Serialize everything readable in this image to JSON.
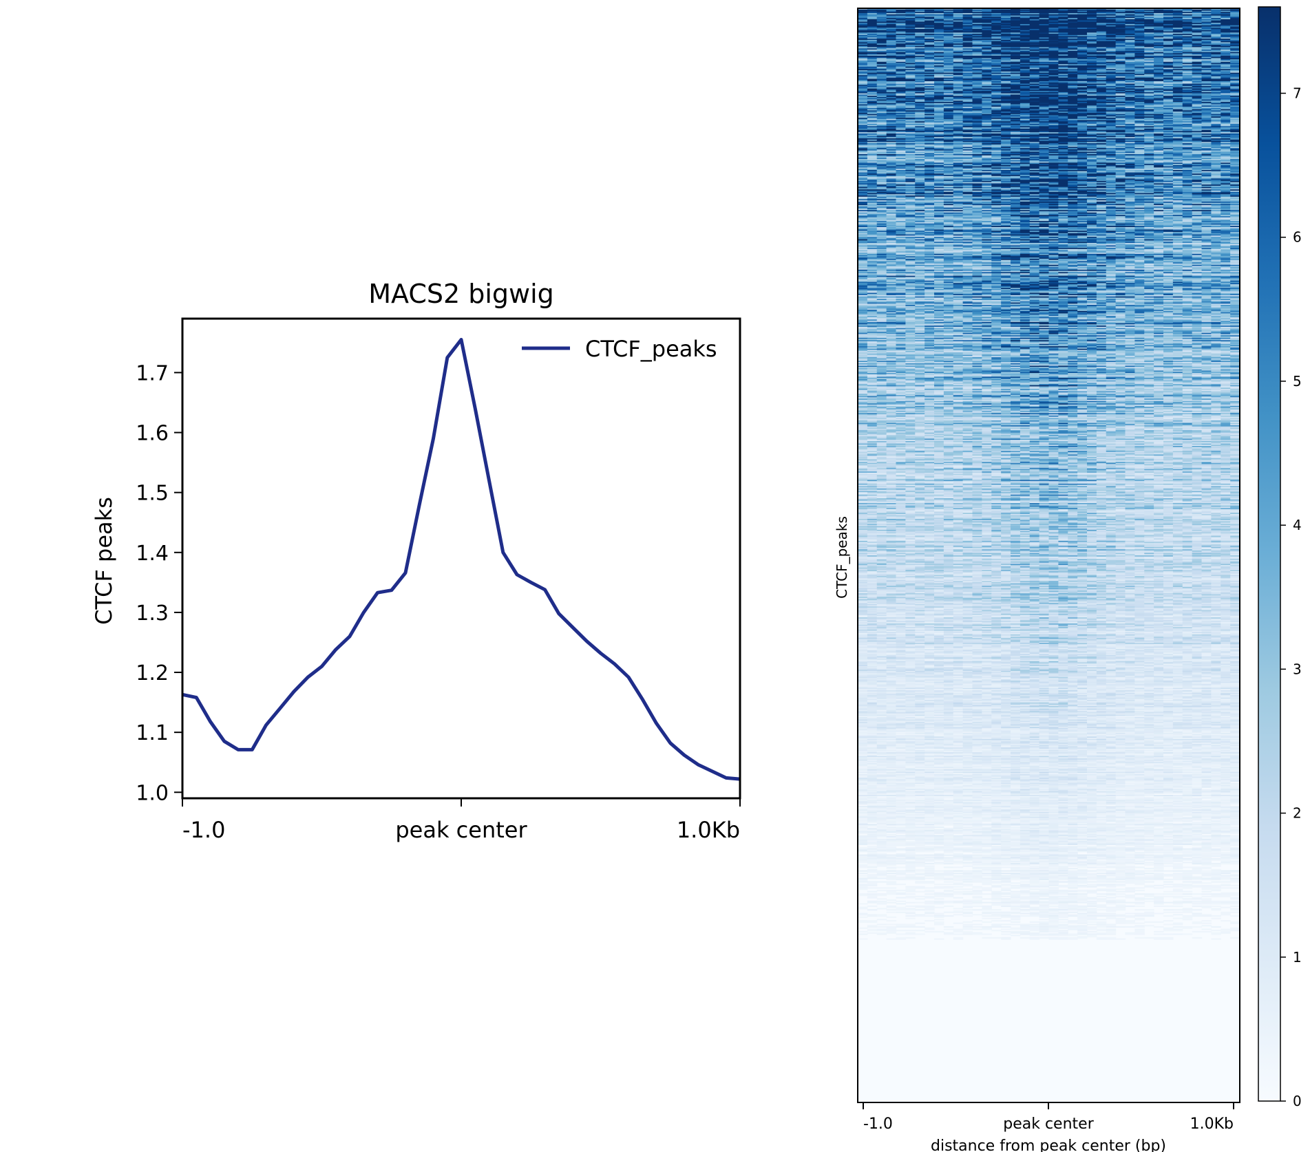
{
  "chart_data": [
    {
      "type": "line",
      "title": "MACS2 bigwig",
      "xlabel": "",
      "ylabel": "CTCF peaks",
      "x_ticks": [
        {
          "x": 0,
          "label": "-1.0"
        },
        {
          "x": 1000,
          "label": "peak center"
        },
        {
          "x": 2000,
          "label": "1.0Kb"
        }
      ],
      "x_range": [
        0,
        2000
      ],
      "ylim": [
        0.99,
        1.79
      ],
      "y_ticks": [
        "1.0",
        "1.1",
        "1.2",
        "1.3",
        "1.4",
        "1.5",
        "1.6",
        "1.7"
      ],
      "legend": {
        "location": "upper right",
        "label": "CTCF_peaks"
      },
      "grid": false,
      "series": [
        {
          "name": "CTCF_peaks",
          "color": "#1f2d8a",
          "x": [
            0,
            50,
            100,
            150,
            200,
            250,
            300,
            350,
            400,
            450,
            500,
            550,
            600,
            650,
            700,
            750,
            800,
            850,
            900,
            950,
            1000,
            1050,
            1100,
            1150,
            1200,
            1250,
            1300,
            1350,
            1400,
            1450,
            1500,
            1550,
            1600,
            1650,
            1700,
            1750,
            1800,
            1850,
            1900,
            1950,
            2000
          ],
          "values": [
            1.163,
            1.158,
            1.118,
            1.085,
            1.071,
            1.071,
            1.112,
            1.14,
            1.168,
            1.192,
            1.21,
            1.238,
            1.26,
            1.3,
            1.333,
            1.337,
            1.366,
            1.48,
            1.59,
            1.725,
            1.755,
            1.64,
            1.52,
            1.4,
            1.363,
            1.35,
            1.338,
            1.298,
            1.275,
            1.252,
            1.232,
            1.214,
            1.192,
            1.155,
            1.115,
            1.082,
            1.062,
            1.046,
            1.035,
            1.024,
            1.022
          ]
        }
      ]
    },
    {
      "type": "heatmap",
      "title": "",
      "xlabel": "distance from peak center (bp)",
      "ylabel": "CTCF_peaks",
      "x_ticks": [
        "-1.0",
        "peak center",
        "1.0Kb"
      ],
      "colormap": "Blues",
      "colorbar": {
        "range": [
          0,
          7.6
        ],
        "ticks": [
          "0",
          "1",
          "2",
          "3",
          "4",
          "5",
          "6",
          "7"
        ]
      },
      "rows_sorted": "descending mean signal",
      "row_count_estimate": 900,
      "profile": "rows sorted by decreasing signal; values up to ~7.5 in the top rows with a mild enrichment at the peak center, decreasing to ~0 at the bottom"
    }
  ]
}
